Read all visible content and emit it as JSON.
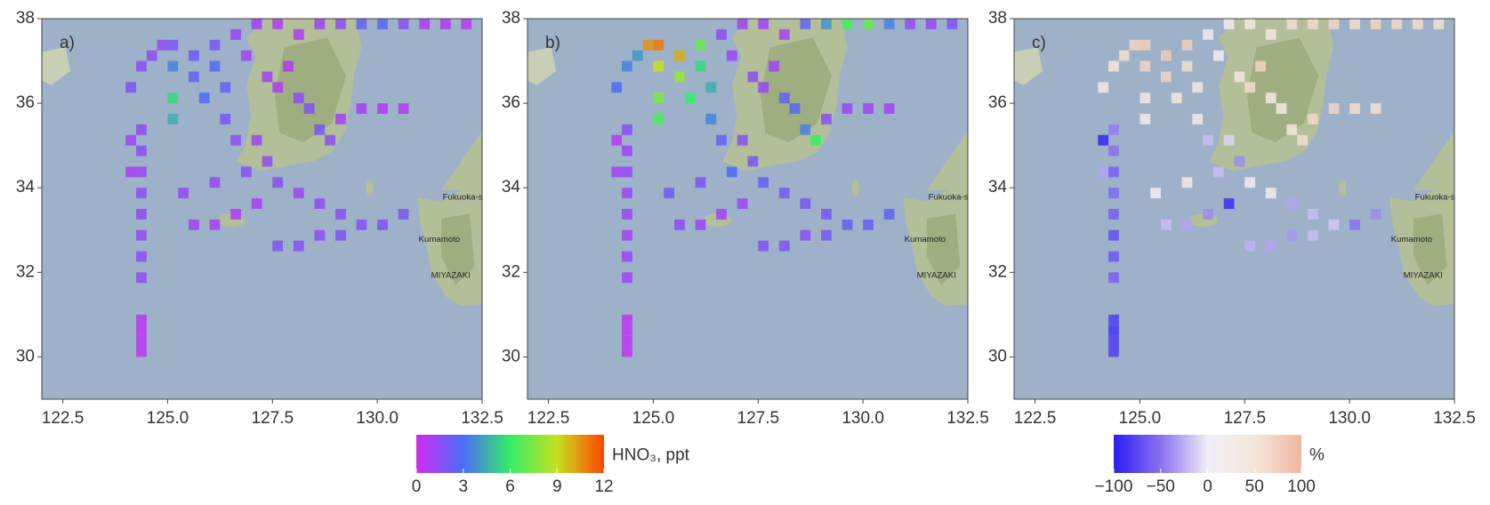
{
  "chart_data": [
    {
      "type": "heatmap",
      "label": "a)",
      "xlim": [
        122,
        132.5
      ],
      "ylim": [
        29,
        38
      ],
      "xticks": [
        122.5,
        {
          "value": 125,
          "label": "125.0"
        },
        127.5,
        {
          "value": 130,
          "label": "130.0"
        },
        132.5
      ],
      "yticks": [
        30,
        32,
        34,
        36,
        38
      ],
      "clim": [
        0,
        12
      ],
      "colormap": [
        "#d02bf2",
        "#4a6cf7",
        "#33ee66",
        "#c8e020",
        "#ff4400"
      ],
      "colorbar": {
        "label": "HNO₃, ppt",
        "ticks": [
          0,
          3,
          6,
          9,
          12
        ]
      },
      "x": [
        124.25,
        124.25,
        124.25,
        124.25,
        124.25,
        124.25,
        124.25,
        124.25,
        124.25,
        124.25,
        124.25,
        124.25,
        124.0,
        124.0,
        124.0,
        124.25,
        124.5,
        124.75,
        125.0,
        125.0,
        125.0,
        125.0,
        125.5,
        125.5,
        125.75,
        126.0,
        126.0,
        126.25,
        126.25,
        126.5,
        126.5,
        126.75,
        127.0,
        127.5,
        128.0,
        128.5,
        129.0,
        129.5,
        130.0,
        130.5,
        131.0,
        131.5,
        132.0,
        127.25,
        127.5,
        127.75,
        128.0,
        128.25,
        128.5,
        128.75,
        129.0,
        129.5,
        130.0,
        130.5,
        127.0,
        127.25,
        126.75,
        127.5,
        128.0,
        128.5,
        129.0,
        129.5,
        127.0,
        126.5,
        126.0,
        125.5,
        125.25,
        126.0,
        130.0,
        130.5,
        127.5,
        128.0,
        128.5,
        129.0
      ],
      "y": [
        30.0,
        30.25,
        30.5,
        30.75,
        31.75,
        32.25,
        32.75,
        33.25,
        33.75,
        34.25,
        34.75,
        35.25,
        35.0,
        34.25,
        36.25,
        36.75,
        37.0,
        37.25,
        37.25,
        36.75,
        36.0,
        35.5,
        37.0,
        36.5,
        36.0,
        37.25,
        36.75,
        36.25,
        35.5,
        35.0,
        37.5,
        37.0,
        37.75,
        37.75,
        37.5,
        37.75,
        37.75,
        37.75,
        37.75,
        37.75,
        37.75,
        37.75,
        37.75,
        36.5,
        36.25,
        36.75,
        36.0,
        35.75,
        35.25,
        35.0,
        35.5,
        35.75,
        35.75,
        35.75,
        35.0,
        34.5,
        34.25,
        34.0,
        33.75,
        33.5,
        33.25,
        33.0,
        33.5,
        33.25,
        33.0,
        33.0,
        33.75,
        34.0,
        33.0,
        33.25,
        32.5,
        32.5,
        32.75,
        32.75
      ],
      "values": [
        0.5,
        0.5,
        0.4,
        0.5,
        1.5,
        1.6,
        1.5,
        1.4,
        1.5,
        1.3,
        1.5,
        1.4,
        1.2,
        0.8,
        1.8,
        1.5,
        1.4,
        1.3,
        2.0,
        3.5,
        5.5,
        4.5,
        2.2,
        2.5,
        3.0,
        2.0,
        2.8,
        2.5,
        2.0,
        1.5,
        1.2,
        1.0,
        1.0,
        0.8,
        0.7,
        1.2,
        1.5,
        2.5,
        2.8,
        1.5,
        0.8,
        0.6,
        0.6,
        1.0,
        0.8,
        0.6,
        1.5,
        1.8,
        2.0,
        1.6,
        1.0,
        0.8,
        0.7,
        0.6,
        1.2,
        1.4,
        1.6,
        1.5,
        1.2,
        1.4,
        1.6,
        1.8,
        0.8,
        0.7,
        0.9,
        1.0,
        1.3,
        1.1,
        1.8,
        2.0,
        1.8,
        1.6,
        1.5,
        1.9
      ]
    },
    {
      "type": "heatmap",
      "label": "b)",
      "xlim": [
        122,
        132.5
      ],
      "ylim": [
        29,
        38
      ],
      "xticks": [
        122.5,
        {
          "value": 125,
          "label": "125.0"
        },
        127.5,
        {
          "value": 130,
          "label": "130.0"
        },
        132.5
      ],
      "yticks": [
        30,
        32,
        34,
        36,
        38
      ],
      "clim": [
        0,
        12
      ],
      "colormap": [
        "#d02bf2",
        "#4a6cf7",
        "#33ee66",
        "#c8e020",
        "#ff4400"
      ],
      "x": [
        124.25,
        124.25,
        124.25,
        124.25,
        124.25,
        124.25,
        124.25,
        124.25,
        124.25,
        124.25,
        124.25,
        124.25,
        124.0,
        124.0,
        124.0,
        124.25,
        124.5,
        124.75,
        125.0,
        125.0,
        125.0,
        125.0,
        125.5,
        125.5,
        125.75,
        126.0,
        126.0,
        126.25,
        126.25,
        126.5,
        126.5,
        126.75,
        127.0,
        127.5,
        128.0,
        128.5,
        129.0,
        129.5,
        130.0,
        130.5,
        131.0,
        131.5,
        132.0,
        127.25,
        127.5,
        127.75,
        128.0,
        128.25,
        128.5,
        128.75,
        129.0,
        129.5,
        130.0,
        130.5,
        127.0,
        127.25,
        126.75,
        127.5,
        128.0,
        128.5,
        129.0,
        129.5,
        127.0,
        126.5,
        126.0,
        125.5,
        125.25,
        126.0,
        130.0,
        130.5,
        127.5,
        128.0,
        128.5,
        129.0
      ],
      "y": [
        30.0,
        30.25,
        30.5,
        30.75,
        31.75,
        32.25,
        32.75,
        33.25,
        33.75,
        34.25,
        34.75,
        35.25,
        35.0,
        34.25,
        36.25,
        36.75,
        37.0,
        37.25,
        37.25,
        36.75,
        36.0,
        35.5,
        37.0,
        36.5,
        36.0,
        37.25,
        36.75,
        36.25,
        35.5,
        35.0,
        37.5,
        37.0,
        37.75,
        37.75,
        37.5,
        37.75,
        37.75,
        37.75,
        37.75,
        37.75,
        37.75,
        37.75,
        37.75,
        36.5,
        36.25,
        36.75,
        36.0,
        35.75,
        35.25,
        35.0,
        35.5,
        35.75,
        35.75,
        35.75,
        35.0,
        34.5,
        34.25,
        34.0,
        33.75,
        33.5,
        33.25,
        33.0,
        33.5,
        33.25,
        33.0,
        33.0,
        33.75,
        34.0,
        33.0,
        33.25,
        32.5,
        32.5,
        32.75,
        32.75
      ],
      "values": [
        0.4,
        0.4,
        0.5,
        0.4,
        1.0,
        1.1,
        1.0,
        1.2,
        1.1,
        1.3,
        1.2,
        1.5,
        0.5,
        1.0,
        3.0,
        3.5,
        4.0,
        10.5,
        11.0,
        9.0,
        7.5,
        6.5,
        10.0,
        8.0,
        6.0,
        7.0,
        5.5,
        4.5,
        3.5,
        2.5,
        1.5,
        1.2,
        1.2,
        1.0,
        0.9,
        2.5,
        4.0,
        6.5,
        7.0,
        3.5,
        1.5,
        1.2,
        1.8,
        1.5,
        1.2,
        1.0,
        2.5,
        2.8,
        3.5,
        6.0,
        1.5,
        1.2,
        1.0,
        0.9,
        1.8,
        2.0,
        3.0,
        2.5,
        2.2,
        2.0,
        2.0,
        2.4,
        1.2,
        1.0,
        1.2,
        1.4,
        2.2,
        1.8,
        2.3,
        2.6,
        1.7,
        1.8,
        1.6,
        2.0
      ]
    },
    {
      "type": "heatmap",
      "label": "c)",
      "xlim": [
        122,
        132.5
      ],
      "ylim": [
        29,
        38
      ],
      "xticks": [
        122.5,
        {
          "value": 125,
          "label": "125.0"
        },
        127.5,
        {
          "value": 130,
          "label": "130.0"
        },
        132.5
      ],
      "yticks": [
        30,
        32,
        34,
        36,
        38
      ],
      "clim": [
        -100,
        100
      ],
      "colormap": [
        "#2a1df5",
        "#8a70f0",
        "#f2eef6",
        "#f5e6da",
        "#efb7a0"
      ],
      "colorbar": {
        "label": "%",
        "ticks": [
          {
            "value": -100,
            "label": "−100"
          },
          {
            "value": -50,
            "label": "−50"
          },
          0,
          50,
          100
        ]
      },
      "x": [
        124.25,
        124.25,
        124.25,
        124.25,
        124.25,
        124.25,
        124.25,
        124.25,
        124.25,
        124.25,
        124.25,
        124.25,
        124.0,
        124.0,
        124.0,
        124.25,
        124.5,
        124.75,
        125.0,
        125.0,
        125.0,
        125.0,
        125.5,
        125.5,
        125.75,
        126.0,
        126.0,
        126.25,
        126.25,
        126.5,
        126.5,
        126.75,
        127.0,
        127.5,
        128.0,
        128.5,
        129.0,
        129.5,
        130.0,
        130.5,
        131.0,
        131.5,
        132.0,
        127.25,
        127.5,
        127.75,
        128.0,
        128.25,
        128.5,
        128.75,
        129.0,
        129.5,
        130.0,
        130.5,
        127.0,
        127.25,
        126.75,
        127.5,
        128.0,
        128.5,
        129.0,
        129.5,
        127.0,
        126.5,
        126.0,
        125.5,
        125.25,
        126.0,
        130.0,
        130.5,
        127.5,
        128.0,
        128.5,
        129.0
      ],
      "y": [
        30.0,
        30.25,
        30.5,
        30.75,
        31.75,
        32.25,
        32.75,
        33.25,
        33.75,
        34.25,
        34.75,
        35.25,
        35.0,
        34.25,
        36.25,
        36.75,
        37.0,
        37.25,
        37.25,
        36.75,
        36.0,
        35.5,
        37.0,
        36.5,
        36.0,
        37.25,
        36.75,
        36.25,
        35.5,
        35.0,
        37.5,
        37.0,
        37.75,
        37.75,
        37.5,
        37.75,
        37.75,
        37.75,
        37.75,
        37.75,
        37.75,
        37.75,
        37.75,
        36.5,
        36.25,
        36.75,
        36.0,
        35.75,
        35.25,
        35.0,
        35.5,
        35.75,
        35.75,
        35.75,
        35.0,
        34.5,
        34.25,
        34.0,
        33.75,
        33.5,
        33.25,
        33.0,
        33.5,
        33.25,
        33.0,
        33.0,
        33.75,
        34.0,
        33.0,
        33.25,
        32.5,
        32.5,
        32.75,
        32.75
      ],
      "values": [
        -80,
        -80,
        -85,
        -80,
        -60,
        -65,
        -70,
        -60,
        -55,
        -60,
        -50,
        -45,
        -95,
        -30,
        40,
        50,
        60,
        70,
        75,
        70,
        35,
        30,
        80,
        70,
        50,
        75,
        60,
        45,
        30,
        -20,
        20,
        10,
        20,
        30,
        40,
        60,
        65,
        70,
        60,
        70,
        65,
        60,
        55,
        50,
        60,
        70,
        30,
        20,
        40,
        60,
        65,
        70,
        60,
        55,
        -10,
        -40,
        -20,
        10,
        20,
        -30,
        -20,
        -15,
        -90,
        -40,
        -30,
        -20,
        10,
        30,
        -50,
        -40,
        -25,
        -30,
        -35,
        -20
      ]
    }
  ],
  "map_labels": [
    "Fukuoka-shi",
    "MIYAZAKI",
    "Kumamoto"
  ]
}
